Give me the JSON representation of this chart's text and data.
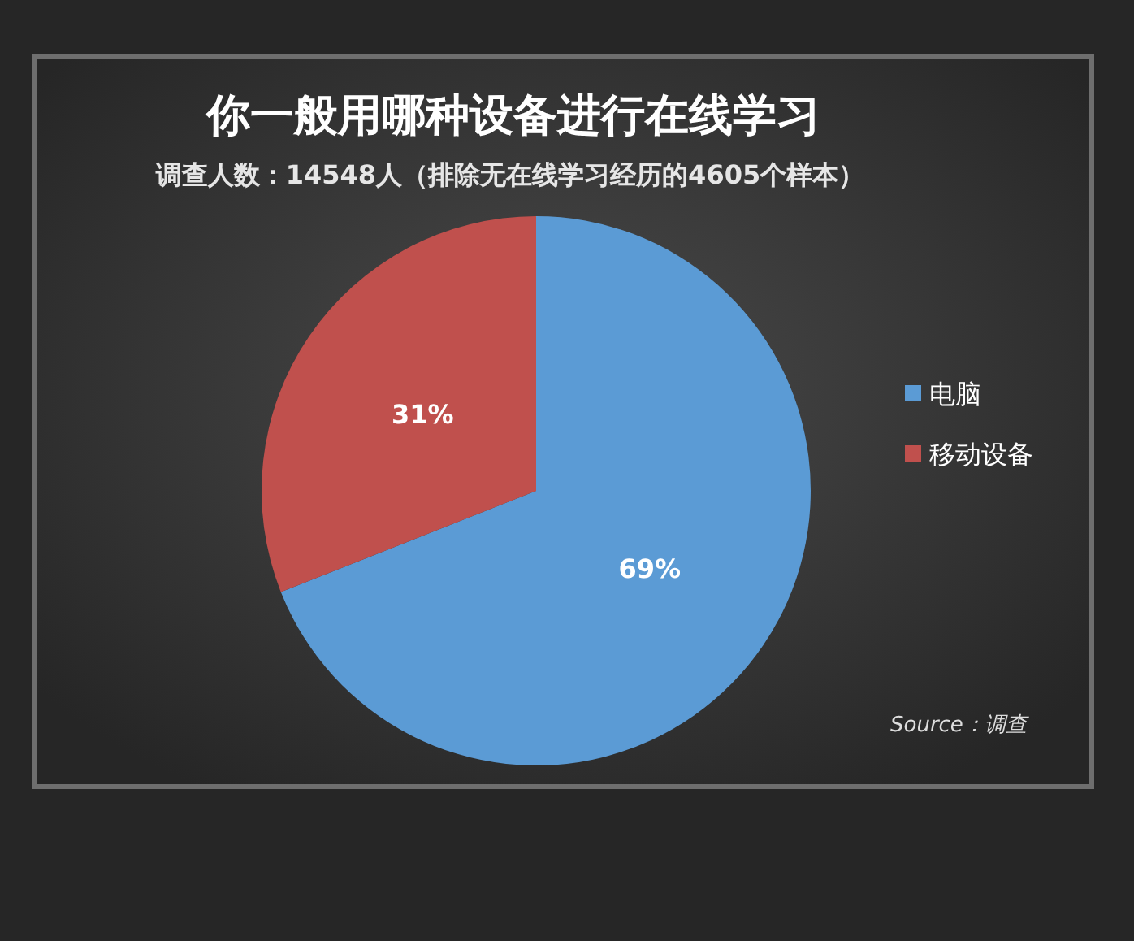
{
  "chart_data": {
    "type": "pie",
    "title": "你一般用哪种设备进行在线学习",
    "subtitle": "调查人数：14548人（排除无在线学习经历的4605个样本）",
    "categories": [
      "电脑",
      "移动设备"
    ],
    "values": [
      69,
      31
    ],
    "colors": [
      "#5b9bd5",
      "#c0504d"
    ],
    "value_labels": [
      "69%",
      "31%"
    ],
    "legend": "right",
    "annotations": [
      "Source：调查"
    ]
  }
}
